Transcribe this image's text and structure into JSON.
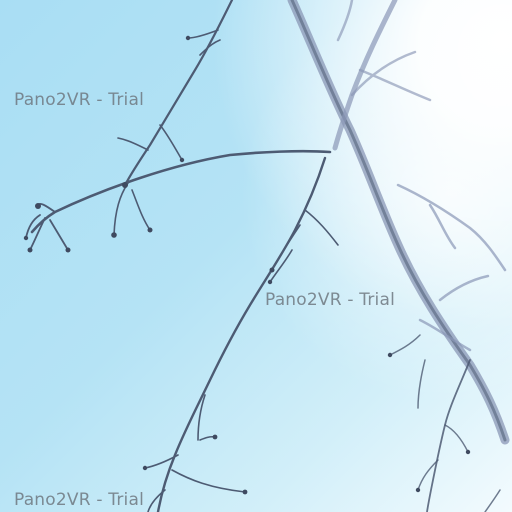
{
  "scene": {
    "subject": "bare-branches-against-sky",
    "colors": {
      "sky": "#b7e4f6",
      "sun_glare": "#ffffff",
      "branch_dark": "#4d5b73",
      "branch_light": "#8a97b6",
      "watermark": "#6e7880"
    }
  },
  "watermarks": [
    {
      "text": "Pano2VR - Trial"
    },
    {
      "text": "Pano2VR - Trial"
    },
    {
      "text": "Pano2VR - Trial"
    }
  ]
}
